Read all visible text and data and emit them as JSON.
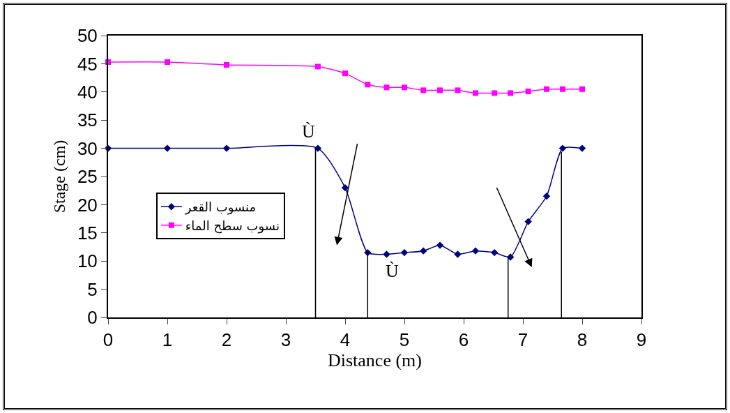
{
  "chart_data": {
    "type": "line",
    "xlabel": "Distance (m)",
    "ylabel": "Stage (cm)",
    "xlim": [
      0,
      9
    ],
    "xticks": [
      0,
      1,
      2,
      3,
      4,
      5,
      6,
      7,
      8,
      9
    ],
    "ylim": [
      0,
      50
    ],
    "yticks": [
      0,
      5,
      10,
      15,
      20,
      25,
      30,
      35,
      40,
      45,
      50
    ],
    "grid": false,
    "legend": "left",
    "line_style": "solid",
    "x": [
      0,
      1,
      2,
      3.54,
      4,
      4.38,
      4.7,
      5,
      5.32,
      5.6,
      5.9,
      6.2,
      6.52,
      6.79,
      7.09,
      7.4,
      7.67,
      8
    ],
    "series": [
      {
        "name": "منسوب القعر",
        "color": "#000080",
        "marker": "diamond",
        "values": [
          30,
          30,
          30,
          30,
          23,
          11.5,
          11.2,
          11.5,
          11.8,
          12.8,
          11.2,
          11.8,
          11.5,
          10.7,
          17,
          21.5,
          30,
          30
        ]
      },
      {
        "name": "نسوب سطح الماء",
        "color": "#ff00ff",
        "marker": "square",
        "values": [
          45.3,
          45.3,
          44.8,
          44.5,
          43.3,
          41.3,
          40.8,
          40.8,
          40.3,
          40.3,
          40.3,
          39.8,
          39.8,
          39.8,
          40.1,
          40.5,
          40.5,
          40.5
        ]
      }
    ],
    "ref_lines": [
      {
        "axis": "x",
        "value": 3.5,
        "color": "#000000"
      },
      {
        "axis": "x",
        "value": 4.38,
        "color": "#000000"
      },
      {
        "axis": "x",
        "value": 6.75,
        "color": "#000000"
      },
      {
        "axis": "x",
        "value": 7.65,
        "color": "#000000"
      }
    ],
    "annotations": [
      "Ù",
      "Ù"
    ]
  }
}
